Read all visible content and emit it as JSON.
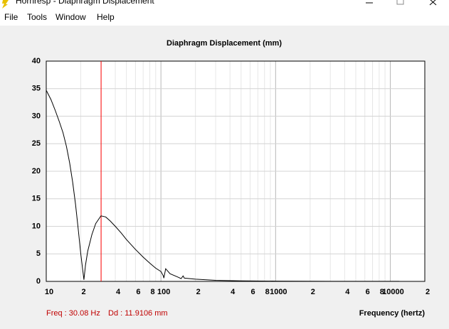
{
  "window": {
    "title": "Hornresp - Diaphragm Displacement",
    "menu": [
      "File",
      "Tools",
      "Window",
      "Help"
    ]
  },
  "chart_data": {
    "type": "line",
    "title": "Diaphragm Displacement (mm)",
    "x_label": "Frequency (hertz)",
    "color": "#000000",
    "log_x": true,
    "grid": true,
    "x": [
      10,
      11,
      12,
      13,
      14,
      15,
      16,
      17,
      18,
      19,
      20,
      21.3,
      22,
      23,
      25,
      27,
      30,
      33,
      36,
      40,
      45,
      50,
      60,
      70,
      80,
      90,
      100,
      105,
      106,
      110,
      120,
      140,
      150,
      156,
      160,
      200,
      300,
      500,
      1000,
      3000,
      12000
    ],
    "values": [
      34.7,
      33,
      31,
      29,
      27,
      24.5,
      21.5,
      18,
      14,
      9.5,
      5,
      0.3,
      3,
      5.5,
      8.5,
      10.5,
      11.9,
      11.7,
      11,
      10,
      8.8,
      7.6,
      5.8,
      4.4,
      3.3,
      2.4,
      1.8,
      1.0,
      0.6,
      2.3,
      1.4,
      0.8,
      0.5,
      1.0,
      0.6,
      0.4,
      0.2,
      0.1,
      0.05,
      0.02,
      0.01
    ],
    "xlim": [
      10,
      20000
    ],
    "xticks": [
      10,
      {
        "value": 20,
        "label": "2"
      },
      {
        "value": 40,
        "label": "4"
      },
      {
        "value": 60,
        "label": "6"
      },
      {
        "value": 80,
        "label": "8"
      },
      100,
      {
        "value": 200,
        "label": "2"
      },
      {
        "value": 400,
        "label": "4"
      },
      {
        "value": 600,
        "label": "6"
      },
      {
        "value": 800,
        "label": "8"
      },
      1000,
      {
        "value": 2000,
        "label": "2"
      },
      {
        "value": 4000,
        "label": "4"
      },
      {
        "value": 6000,
        "label": "6"
      },
      {
        "value": 8000,
        "label": "8"
      },
      10000,
      {
        "value": 20000,
        "label": "2"
      }
    ],
    "x_minor_ticks": [
      30,
      50,
      70,
      90,
      300,
      500,
      700,
      900,
      3000,
      5000,
      7000,
      9000
    ],
    "ylim": [
      0,
      40
    ],
    "yticks": [
      0,
      5,
      10,
      15,
      20,
      25,
      30,
      35,
      40
    ],
    "cursor": {
      "x": 30.08,
      "color": "#ff0000",
      "freq_label": "Freq : 30.08 Hz",
      "dd_label": "Dd : 11.9106 mm"
    }
  }
}
